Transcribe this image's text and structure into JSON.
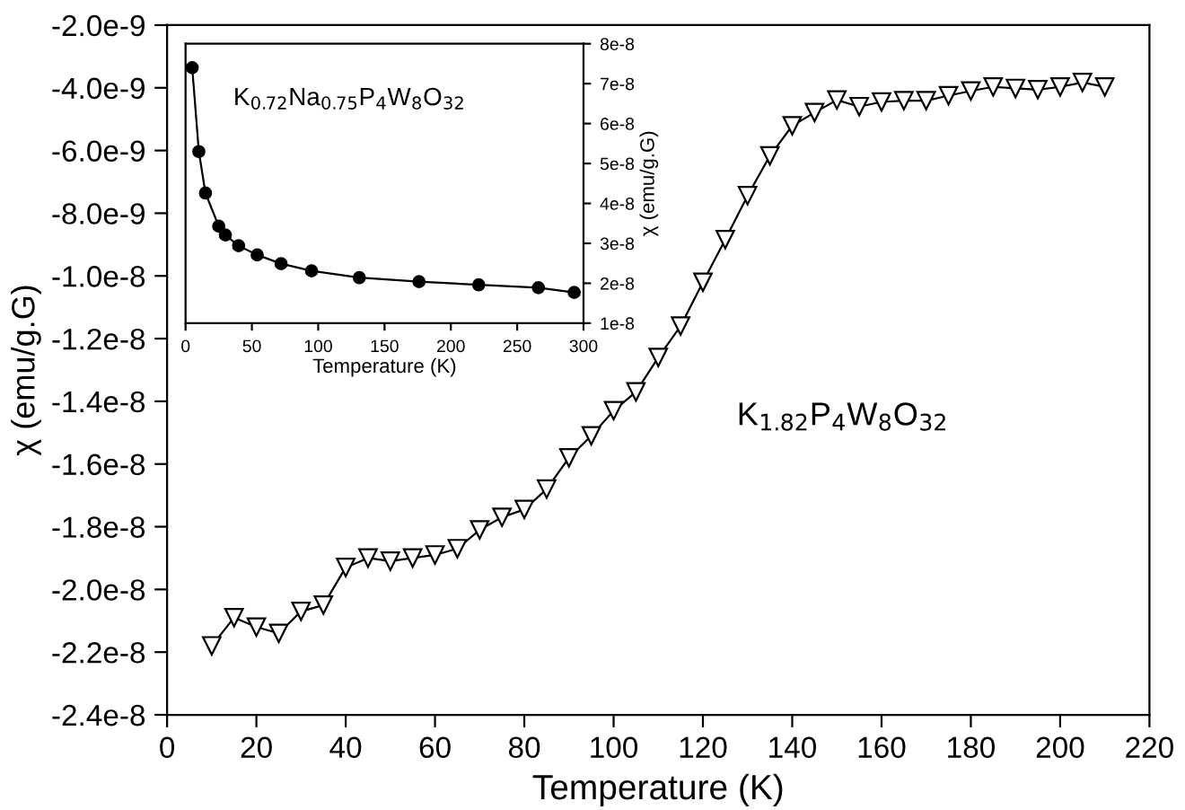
{
  "chart_data": [
    {
      "type": "line",
      "xlabel": "Temperature (K)",
      "ylabel": "χ (emu/g.G)",
      "annotations": [
        "K$_{1.82}$P$_{4}$W$_{8}$O$_{32}$"
      ],
      "x": [
        10,
        15,
        20,
        25,
        30,
        35,
        40,
        45,
        50,
        55,
        60,
        65,
        70,
        75,
        80,
        85,
        90,
        95,
        100,
        105,
        110,
        115,
        120,
        125,
        130,
        135,
        140,
        145,
        150,
        155,
        160,
        165,
        170,
        175,
        180,
        185,
        190,
        195,
        200,
        205,
        210
      ],
      "series": [
        {
          "color": "#000000",
          "values": [
            -2.18e-08,
            -2.09e-08,
            -2.12e-08,
            -2.14e-08,
            -2.07e-08,
            -2.05e-08,
            -1.93e-08,
            -1.9e-08,
            -1.91e-08,
            -1.9e-08,
            -1.89e-08,
            -1.87e-08,
            -1.81e-08,
            -1.77e-08,
            -1.745e-08,
            -1.68e-08,
            -1.58e-08,
            -1.51e-08,
            -1.43e-08,
            -1.37e-08,
            -1.26e-08,
            -1.16e-08,
            -1.02e-08,
            -8.84e-09,
            -7.44e-09,
            -6.17e-09,
            -5.21e-09,
            -4.79e-09,
            -4.39e-09,
            -4.6e-09,
            -4.45e-09,
            -4.41e-09,
            -4.41e-09,
            -4.25e-09,
            -4.1e-09,
            -3.97e-09,
            -4.02e-09,
            -4.06e-09,
            -3.97e-09,
            -3.83e-09,
            -3.97e-09
          ]
        }
      ],
      "marker": "triangle",
      "grid": false,
      "xlim": [
        0,
        220
      ],
      "xticks": [
        0,
        20,
        40,
        60,
        80,
        100,
        120,
        140,
        160,
        180,
        200,
        220
      ],
      "ylim": [
        -2.4e-08,
        -2e-09
      ],
      "yticks": [
        {
          "value": -2.4e-08,
          "label": "-2.4e-8"
        },
        {
          "value": -2.2e-08,
          "label": "-2.2e-8"
        },
        {
          "value": -2e-08,
          "label": "-2.0e-8"
        },
        {
          "value": -1.8e-08,
          "label": "-1.8e-8"
        },
        {
          "value": -1.6e-08,
          "label": "-1.6e-8"
        },
        {
          "value": -1.4e-08,
          "label": "-1.4e-8"
        },
        {
          "value": -1.2e-08,
          "label": "-1.2e-8"
        },
        {
          "value": -1e-08,
          "label": "-1.0e-8"
        },
        {
          "value": -8e-09,
          "label": "-8.0e-9"
        },
        {
          "value": -6e-09,
          "label": "-6.0e-9"
        },
        {
          "value": -4e-09,
          "label": "-4.0e-9"
        },
        {
          "value": -2e-09,
          "label": "-2.0e-9"
        }
      ]
    },
    {
      "type": "line",
      "xlabel": "Temperature (K)",
      "y2label": "χ (emu/g.G)",
      "annotations": [
        "K$_{0.72}$Na$_{0.75}$P$_{4}$W$_{8}$O$_{32}$"
      ],
      "x": [
        5,
        10,
        15,
        25,
        30,
        40,
        54,
        72,
        95,
        131,
        176,
        221,
        266,
        293
      ],
      "series": [
        {
          "color": "#000000",
          "axis": "y2",
          "values": [
            7.4e-08,
            5.3e-08,
            4.26e-08,
            3.43e-08,
            3.21e-08,
            2.94e-08,
            2.71e-08,
            2.49e-08,
            2.31e-08,
            2.14e-08,
            2.04e-08,
            1.96e-08,
            1.89e-08,
            1.77e-08
          ]
        }
      ],
      "marker": "circle",
      "grid": false,
      "xlim": [
        0,
        300
      ],
      "xticks": [
        0,
        50,
        100,
        150,
        200,
        250,
        300
      ],
      "y2lim": [
        1e-08,
        8e-08
      ],
      "y2ticks": [
        {
          "value": 1e-08,
          "label": "1e-8"
        },
        {
          "value": 2e-08,
          "label": "2e-8"
        },
        {
          "value": 3e-08,
          "label": "3e-8"
        },
        {
          "value": 4e-08,
          "label": "4e-8"
        },
        {
          "value": 5e-08,
          "label": "5e-8"
        },
        {
          "value": 6e-08,
          "label": "6e-8"
        },
        {
          "value": 7e-08,
          "label": "7e-8"
        },
        {
          "value": 8e-08,
          "label": "8e-8"
        }
      ]
    }
  ]
}
